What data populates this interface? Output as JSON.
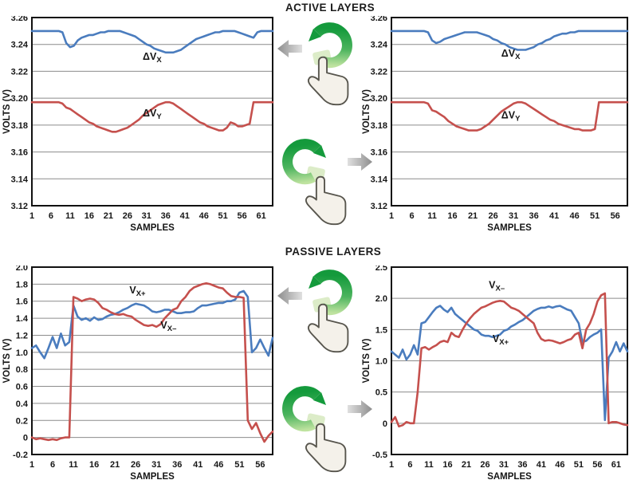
{
  "page": {
    "active_title": "ACTIVE LAYERS",
    "passive_title": "PASSIVE LAYERS"
  },
  "colors": {
    "series_blue": "#4a7cbe",
    "series_red": "#c5504d",
    "grid": "#8c8c8c",
    "axis": "#111111",
    "green_arrow_dark": "#149a3c",
    "green_arrow_light": "#bfe3a0",
    "gray_arrow_dark": "#8d8d8d",
    "gray_arrow_light": "#e0e0e0"
  },
  "gestures": {
    "top": {
      "icon": "rotate-counterclockwise",
      "result_arrow": "left"
    },
    "bottom": {
      "icon": "rotate-clockwise",
      "result_arrow": "right"
    }
  },
  "chart_data": [
    {
      "id": "active-left",
      "type": "line",
      "group": "ACTIVE LAYERS",
      "xlabel": "SAMPLES",
      "ylabel": "VOLTS (V)",
      "xlim": [
        1,
        64
      ],
      "ylim": [
        3.12,
        3.26
      ],
      "grid": "horizontal",
      "legend": "inline-labels",
      "xticks": [
        1,
        6,
        11,
        16,
        21,
        26,
        31,
        36,
        41,
        46,
        51,
        56,
        61
      ],
      "ytick_values": [
        3.26,
        3.24,
        3.22,
        3.2,
        3.18,
        3.16,
        3.14,
        3.12
      ],
      "ytick_labels": [
        "3.26",
        "3.24",
        "3.22",
        "3.20",
        "3.18",
        "3.16",
        "3.14",
        "3.12"
      ],
      "series": [
        {
          "name": "ΔVX",
          "label_main": "ΔV",
          "label_sub": "X",
          "label_x": 30,
          "label_y": 3.2285,
          "color": "#4a7cbe",
          "x_start": 1,
          "values": [
            3.25,
            3.25,
            3.25,
            3.25,
            3.25,
            3.25,
            3.25,
            3.25,
            3.249,
            3.241,
            3.238,
            3.239,
            3.243,
            3.245,
            3.246,
            3.247,
            3.247,
            3.248,
            3.249,
            3.249,
            3.25,
            3.25,
            3.25,
            3.25,
            3.249,
            3.248,
            3.247,
            3.246,
            3.244,
            3.242,
            3.24,
            3.239,
            3.237,
            3.236,
            3.235,
            3.234,
            3.234,
            3.234,
            3.235,
            3.236,
            3.238,
            3.24,
            3.242,
            3.244,
            3.245,
            3.246,
            3.247,
            3.248,
            3.249,
            3.249,
            3.25,
            3.25,
            3.25,
            3.25,
            3.249,
            3.248,
            3.247,
            3.246,
            3.245,
            3.249,
            3.25,
            3.25,
            3.25,
            3.25
          ]
        },
        {
          "name": "ΔVY",
          "label_main": "ΔV",
          "label_sub": "Y",
          "label_x": 30,
          "label_y": 3.1865,
          "color": "#c5504d",
          "x_start": 1,
          "values": [
            3.197,
            3.197,
            3.197,
            3.197,
            3.197,
            3.197,
            3.197,
            3.197,
            3.196,
            3.193,
            3.192,
            3.19,
            3.188,
            3.186,
            3.184,
            3.182,
            3.181,
            3.179,
            3.178,
            3.177,
            3.176,
            3.175,
            3.175,
            3.176,
            3.177,
            3.178,
            3.18,
            3.182,
            3.184,
            3.187,
            3.189,
            3.191,
            3.193,
            3.195,
            3.196,
            3.197,
            3.197,
            3.196,
            3.194,
            3.192,
            3.19,
            3.188,
            3.186,
            3.184,
            3.182,
            3.181,
            3.179,
            3.178,
            3.177,
            3.176,
            3.176,
            3.178,
            3.182,
            3.181,
            3.179,
            3.179,
            3.18,
            3.181,
            3.197,
            3.197,
            3.197,
            3.197,
            3.197,
            3.197
          ]
        }
      ]
    },
    {
      "id": "active-right",
      "type": "line",
      "group": "ACTIVE LAYERS",
      "xlabel": "SAMPLES",
      "ylabel": "VOLTS (V)",
      "xlim": [
        1,
        59
      ],
      "ylim": [
        3.12,
        3.26
      ],
      "grid": "horizontal",
      "legend": "inline-labels",
      "xticks": [
        1,
        6,
        11,
        16,
        21,
        26,
        31,
        36,
        41,
        46,
        51,
        56
      ],
      "ytick_values": [
        3.26,
        3.24,
        3.22,
        3.2,
        3.18,
        3.16,
        3.14,
        3.12
      ],
      "ytick_labels": [
        "3.26",
        "3.24",
        "3.22",
        "3.20",
        "3.18",
        "3.16",
        "3.14",
        "3.12"
      ],
      "series": [
        {
          "name": "ΔVX",
          "label_main": "ΔV",
          "label_sub": "X",
          "label_x": 28,
          "label_y": 3.231,
          "color": "#4a7cbe",
          "x_start": 1,
          "values": [
            3.25,
            3.25,
            3.25,
            3.25,
            3.25,
            3.25,
            3.25,
            3.25,
            3.25,
            3.249,
            3.243,
            3.241,
            3.242,
            3.244,
            3.245,
            3.246,
            3.247,
            3.248,
            3.249,
            3.249,
            3.249,
            3.249,
            3.248,
            3.247,
            3.246,
            3.244,
            3.243,
            3.241,
            3.24,
            3.238,
            3.237,
            3.236,
            3.236,
            3.236,
            3.237,
            3.238,
            3.24,
            3.241,
            3.243,
            3.244,
            3.246,
            3.247,
            3.248,
            3.248,
            3.249,
            3.249,
            3.25,
            3.25,
            3.25,
            3.25,
            3.25,
            3.25,
            3.25,
            3.25,
            3.25,
            3.25,
            3.25,
            3.25,
            3.25
          ]
        },
        {
          "name": "ΔVY",
          "label_main": "ΔV",
          "label_sub": "Y",
          "label_x": 28,
          "label_y": 3.185,
          "color": "#c5504d",
          "x_start": 1,
          "values": [
            3.197,
            3.197,
            3.197,
            3.197,
            3.197,
            3.197,
            3.197,
            3.197,
            3.197,
            3.196,
            3.191,
            3.19,
            3.188,
            3.186,
            3.183,
            3.181,
            3.179,
            3.178,
            3.177,
            3.176,
            3.176,
            3.176,
            3.177,
            3.179,
            3.181,
            3.184,
            3.187,
            3.19,
            3.192,
            3.194,
            3.196,
            3.197,
            3.197,
            3.196,
            3.194,
            3.192,
            3.19,
            3.188,
            3.186,
            3.184,
            3.183,
            3.181,
            3.18,
            3.179,
            3.178,
            3.177,
            3.177,
            3.176,
            3.176,
            3.176,
            3.177,
            3.197,
            3.197,
            3.197,
            3.197,
            3.197,
            3.197,
            3.197,
            3.197
          ]
        }
      ]
    },
    {
      "id": "passive-left",
      "type": "line",
      "group": "PASSIVE LAYERS",
      "xlabel": "SAMPLES",
      "ylabel": "VOLTS (V)",
      "xlim": [
        1,
        59
      ],
      "ylim": [
        -0.2,
        2.0
      ],
      "grid": "horizontal",
      "legend": "inline-labels",
      "xticks": [
        1,
        6,
        11,
        16,
        21,
        26,
        31,
        36,
        41,
        46,
        51,
        56
      ],
      "ytick_values": [
        2.0,
        1.8,
        1.6,
        1.4,
        1.2,
        1.0,
        0.8,
        0.6,
        0.4,
        0.2,
        0,
        -0.2
      ],
      "ytick_labels": [
        "2.0",
        "1.8",
        "1.6",
        "1.4",
        "1.2",
        "1.0",
        "0.8",
        "0.6",
        "0.4",
        "0.2",
        "0",
        "-0.2"
      ],
      "series": [
        {
          "name": "VX+",
          "label_main": "V",
          "label_sub": "X+",
          "label_x": 24.5,
          "label_y": 1.69,
          "color": "#4a7cbe",
          "x_start": 1,
          "values": [
            1.05,
            1.08,
            1.0,
            0.93,
            1.05,
            1.18,
            1.05,
            1.22,
            1.08,
            1.12,
            1.55,
            1.42,
            1.38,
            1.4,
            1.37,
            1.41,
            1.38,
            1.39,
            1.42,
            1.44,
            1.45,
            1.47,
            1.5,
            1.52,
            1.55,
            1.57,
            1.56,
            1.55,
            1.52,
            1.48,
            1.47,
            1.48,
            1.5,
            1.5,
            1.48,
            1.46,
            1.46,
            1.47,
            1.47,
            1.48,
            1.52,
            1.55,
            1.55,
            1.56,
            1.57,
            1.58,
            1.58,
            1.6,
            1.6,
            1.62,
            1.7,
            1.72,
            1.65,
            1.0,
            1.05,
            1.15,
            1.05,
            0.96,
            1.17
          ]
        },
        {
          "name": "VX−",
          "label_main": "V",
          "label_sub": "X–",
          "label_x": 32,
          "label_y": 1.28,
          "color": "#c5504d",
          "x_start": 1,
          "values": [
            0.0,
            -0.02,
            -0.01,
            -0.02,
            -0.03,
            -0.02,
            -0.03,
            -0.01,
            0.0,
            0.0,
            1.65,
            1.63,
            1.6,
            1.62,
            1.63,
            1.62,
            1.58,
            1.52,
            1.5,
            1.47,
            1.45,
            1.44,
            1.45,
            1.43,
            1.42,
            1.38,
            1.35,
            1.32,
            1.31,
            1.32,
            1.3,
            1.33,
            1.4,
            1.45,
            1.5,
            1.52,
            1.6,
            1.65,
            1.72,
            1.76,
            1.78,
            1.8,
            1.81,
            1.8,
            1.78,
            1.76,
            1.75,
            1.7,
            1.66,
            1.65,
            1.65,
            1.64,
            0.2,
            0.1,
            0.17,
            0.05,
            -0.05,
            0.02,
            0.07
          ]
        }
      ]
    },
    {
      "id": "passive-right",
      "type": "line",
      "group": "PASSIVE LAYERS",
      "xlabel": "SAMPLES",
      "ylabel": "VOLTS (V)",
      "xlim": [
        1,
        64
      ],
      "ylim": [
        -0.5,
        2.5
      ],
      "grid": "horizontal",
      "legend": "inline-labels",
      "xticks": [
        1,
        6,
        11,
        16,
        21,
        26,
        31,
        36,
        41,
        46,
        51,
        56,
        61
      ],
      "ytick_values": [
        2.5,
        2.0,
        1.5,
        1.0,
        0.5,
        0,
        -0.5
      ],
      "ytick_labels": [
        "2.5",
        "2.0",
        "1.5",
        "1.0",
        "0.5",
        "0",
        "-0.5"
      ],
      "series": [
        {
          "name": "VX+",
          "label_main": "V",
          "label_sub": "X+",
          "label_x": 28,
          "label_y": 1.3,
          "color": "#4a7cbe",
          "x_start": 1,
          "values": [
            1.15,
            1.1,
            1.05,
            1.18,
            1.02,
            1.1,
            1.25,
            1.1,
            1.6,
            1.62,
            1.7,
            1.78,
            1.85,
            1.88,
            1.82,
            1.78,
            1.85,
            1.75,
            1.7,
            1.65,
            1.6,
            1.55,
            1.5,
            1.48,
            1.42,
            1.4,
            1.4,
            1.38,
            1.4,
            1.42,
            1.48,
            1.5,
            1.55,
            1.58,
            1.62,
            1.65,
            1.7,
            1.75,
            1.8,
            1.83,
            1.85,
            1.85,
            1.87,
            1.85,
            1.87,
            1.88,
            1.85,
            1.82,
            1.8,
            1.7,
            1.6,
            1.3,
            1.32,
            1.38,
            1.42,
            1.45,
            1.5,
            0.05,
            1.05,
            1.15,
            1.3,
            1.15,
            1.28,
            1.15
          ]
        },
        {
          "name": "VX−",
          "label_main": "V",
          "label_sub": "X–",
          "label_x": 27,
          "label_y": 2.16,
          "color": "#c5504d",
          "x_start": 1,
          "values": [
            0.02,
            0.1,
            -0.05,
            -0.03,
            0.02,
            0.0,
            0.0,
            0.5,
            1.2,
            1.22,
            1.18,
            1.22,
            1.25,
            1.3,
            1.32,
            1.3,
            1.45,
            1.4,
            1.38,
            1.5,
            1.6,
            1.68,
            1.75,
            1.8,
            1.85,
            1.87,
            1.9,
            1.93,
            1.95,
            1.96,
            1.95,
            1.9,
            1.85,
            1.83,
            1.8,
            1.75,
            1.7,
            1.65,
            1.6,
            1.45,
            1.35,
            1.32,
            1.33,
            1.32,
            1.3,
            1.28,
            1.3,
            1.33,
            1.35,
            1.42,
            1.45,
            1.2,
            1.5,
            1.6,
            1.75,
            1.95,
            2.05,
            2.08,
            0.0,
            0.02,
            0.02,
            0.0,
            -0.02,
            -0.03
          ]
        }
      ]
    }
  ]
}
